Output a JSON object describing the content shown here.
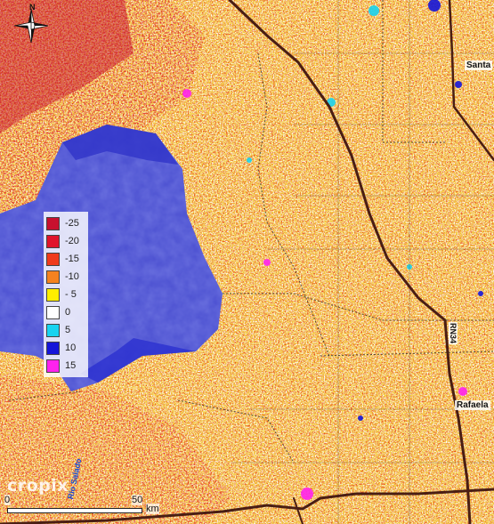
{
  "legend": {
    "items": [
      {
        "label": "-25",
        "color": "#c8102e"
      },
      {
        "label": "-20",
        "color": "#e0142b"
      },
      {
        "label": "-15",
        "color": "#f03a1c"
      },
      {
        "label": "-10",
        "color": "#f5821f"
      },
      {
        "label": "- 5",
        "color": "#ffee00"
      },
      {
        "label": "0",
        "color": "#ffffff"
      },
      {
        "label": "5",
        "color": "#19d3f0"
      },
      {
        "label": "10",
        "color": "#1515d8"
      },
      {
        "label": "15",
        "color": "#ff22ee"
      }
    ]
  },
  "places": {
    "santa": "Santa",
    "rafaela": "Rafaela",
    "route": "RN34",
    "river": "Río Salado"
  },
  "north": {
    "letter": "N"
  },
  "watermark": "cropix",
  "scale": {
    "start": "0",
    "end": "50",
    "unit": "km"
  },
  "colors": {
    "lake": "#4a4fd0",
    "lake_shallow": "#2f33c8",
    "land_base": "#f2c94c",
    "road": "#4a1e14"
  }
}
